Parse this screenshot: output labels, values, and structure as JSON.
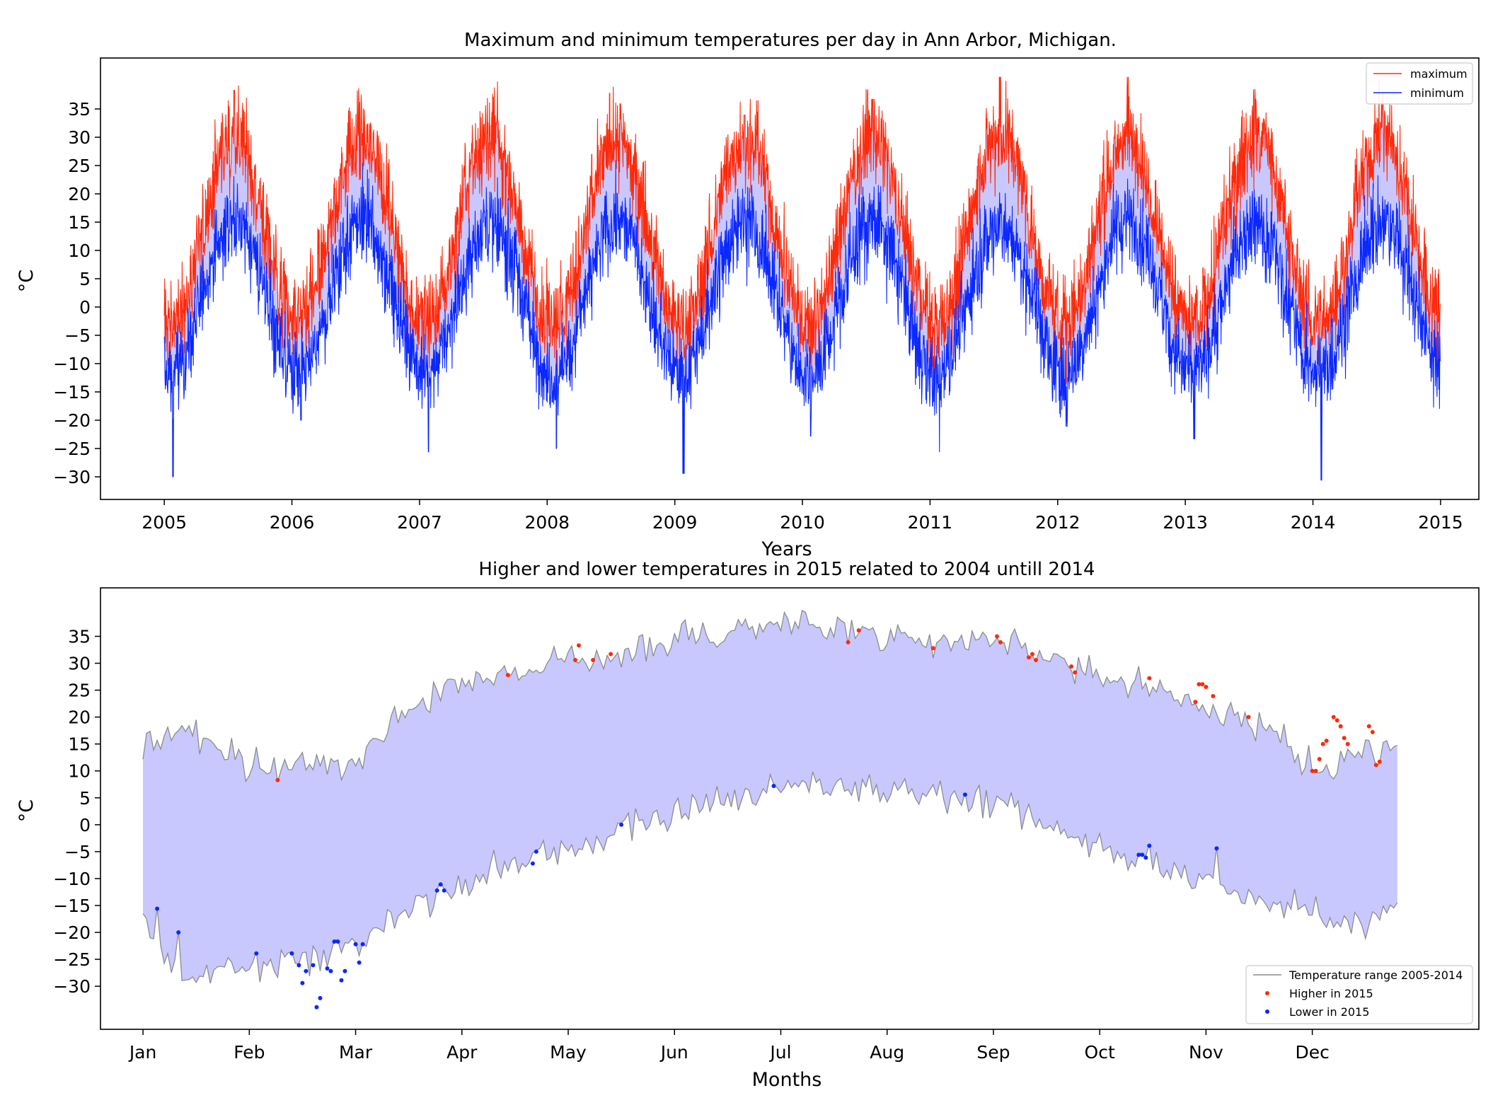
{
  "chart_data": [
    {
      "type": "line",
      "title": "Maximum and minimum temperatures per day in Ann Arbor, Michigan.",
      "xlabel": "Years",
      "ylabel": "°C",
      "xlim": [
        2004.5,
        2015.3
      ],
      "ylim": [
        -34,
        44
      ],
      "x_ticks": [
        "2005",
        "2006",
        "2007",
        "2008",
        "2009",
        "2010",
        "2011",
        "2012",
        "2013",
        "2014",
        "2015"
      ],
      "y_ticks": [
        -30,
        -25,
        -20,
        -15,
        -10,
        -5,
        0,
        5,
        10,
        15,
        20,
        25,
        30,
        35
      ],
      "legend_position": "top-right",
      "fill_between": {
        "color": "#c8c8ff"
      },
      "series": [
        {
          "name": "maximum",
          "color": "#ff2a0a",
          "x_range": [
            2005,
            2015
          ],
          "seasonal_mean": 13.5,
          "seasonal_amplitude": 16.5,
          "noise": 5,
          "yearly_peaks": [
            38.3,
            35.6,
            36.1,
            35.6,
            33.9,
            36.7,
            40.6,
            40.6,
            36.7,
            35.6
          ],
          "note": "daily values sampled 2005-2014 (approx. 3650 points)"
        },
        {
          "name": "minimum",
          "color": "#0a28ff",
          "x_range": [
            2005,
            2015
          ],
          "seasonal_mean": 2,
          "seasonal_amplitude": 13,
          "noise": 5,
          "yearly_lows": [
            -30,
            -20,
            -25.6,
            -25,
            -29.4,
            -22.8,
            -25.6,
            -21.1,
            -23.3,
            -30.6
          ],
          "note": "daily values sampled 2005-2014 (approx. 3650 points)"
        }
      ]
    },
    {
      "type": "scatter",
      "title": "Higher and lower temperatures in 2015 related to 2004 untill 2014",
      "xlabel": "Months",
      "ylabel": "°C",
      "xlim": [
        -12,
        377
      ],
      "ylim": [
        -38,
        44
      ],
      "x_ticks": [
        {
          "label": "Jan",
          "day": 0
        },
        {
          "label": "Feb",
          "day": 30
        },
        {
          "label": "Mar",
          "day": 60
        },
        {
          "label": "Apr",
          "day": 90
        },
        {
          "label": "May",
          "day": 120
        },
        {
          "label": "Jun",
          "day": 150
        },
        {
          "label": "Jul",
          "day": 180
        },
        {
          "label": "Aug",
          "day": 210
        },
        {
          "label": "Sep",
          "day": 240
        },
        {
          "label": "Oct",
          "day": 270
        },
        {
          "label": "Nov",
          "day": 300
        },
        {
          "label": "Dec",
          "day": 330
        }
      ],
      "y_ticks": [
        -30,
        -25,
        -20,
        -15,
        -10,
        -5,
        0,
        5,
        10,
        15,
        20,
        25,
        30,
        35
      ],
      "legend_position": "lower-right",
      "range_band": {
        "name": "Temperature range 2005-2014",
        "line_color": "#8c8c8c",
        "fill_color": "#c8c8ff",
        "upper_control": [
          [
            0,
            15
          ],
          [
            10,
            18
          ],
          [
            30,
            11
          ],
          [
            60,
            12
          ],
          [
            75,
            22
          ],
          [
            90,
            27
          ],
          [
            110,
            29
          ],
          [
            135,
            32
          ],
          [
            165,
            36
          ],
          [
            185,
            38
          ],
          [
            205,
            36
          ],
          [
            225,
            34
          ],
          [
            245,
            35
          ],
          [
            262,
            30
          ],
          [
            280,
            26
          ],
          [
            300,
            22
          ],
          [
            320,
            17
          ],
          [
            330,
            10
          ],
          [
            345,
            14
          ],
          [
            354,
            15
          ]
        ],
        "lower_control": [
          [
            0,
            -18
          ],
          [
            10,
            -28
          ],
          [
            30,
            -27
          ],
          [
            50,
            -25
          ],
          [
            60,
            -22
          ],
          [
            70,
            -17
          ],
          [
            85,
            -13
          ],
          [
            100,
            -8
          ],
          [
            120,
            -5
          ],
          [
            140,
            0
          ],
          [
            160,
            4
          ],
          [
            180,
            7
          ],
          [
            205,
            7
          ],
          [
            225,
            6
          ],
          [
            245,
            3
          ],
          [
            262,
            -2
          ],
          [
            280,
            -7
          ],
          [
            300,
            -10
          ],
          [
            315,
            -14
          ],
          [
            330,
            -16
          ],
          [
            345,
            -19
          ],
          [
            354,
            -15
          ]
        ]
      },
      "series": [
        {
          "name": "Higher in 2015",
          "color": "#ff2a0a",
          "points": [
            [
              38,
              8.3
            ],
            [
              103,
              27.8
            ],
            [
              122,
              30.6
            ],
            [
              123,
              33.3
            ],
            [
              127,
              30.6
            ],
            [
              132,
              31.7
            ],
            [
              199,
              33.9
            ],
            [
              202,
              36.1
            ],
            [
              223,
              32.8
            ],
            [
              241,
              35
            ],
            [
              242,
              33.9
            ],
            [
              250,
              31.1
            ],
            [
              251,
              31.7
            ],
            [
              252,
              30.6
            ],
            [
              262,
              29.4
            ],
            [
              263,
              28.3
            ],
            [
              284,
              27.2
            ],
            [
              297,
              22.8
            ],
            [
              298,
              26.1
            ],
            [
              299,
              26.1
            ],
            [
              300,
              25.6
            ],
            [
              302,
              23.9
            ],
            [
              312,
              20
            ],
            [
              330,
              10
            ],
            [
              331,
              10
            ],
            [
              332,
              12.2
            ],
            [
              333,
              15
            ],
            [
              334,
              15.6
            ],
            [
              336,
              20
            ],
            [
              337,
              19.4
            ],
            [
              338,
              18.3
            ],
            [
              339,
              16.1
            ],
            [
              340,
              15
            ],
            [
              346,
              18.3
            ],
            [
              347,
              17.2
            ],
            [
              348,
              11.1
            ],
            [
              349,
              11.7
            ]
          ]
        },
        {
          "name": "Lower in 2015",
          "color": "#0a28ff",
          "points": [
            [
              4,
              -15.6
            ],
            [
              10,
              -20
            ],
            [
              32,
              -23.9
            ],
            [
              42,
              -23.9
            ],
            [
              44,
              -26.1
            ],
            [
              45,
              -29.4
            ],
            [
              46,
              -27.2
            ],
            [
              48,
              -26.1
            ],
            [
              49,
              -33.9
            ],
            [
              50,
              -32.2
            ],
            [
              52,
              -26.7
            ],
            [
              53,
              -27.2
            ],
            [
              54,
              -21.7
            ],
            [
              55,
              -21.7
            ],
            [
              56,
              -28.9
            ],
            [
              57,
              -27.2
            ],
            [
              60,
              -22.2
            ],
            [
              61,
              -25.6
            ],
            [
              62,
              -22.2
            ],
            [
              83,
              -12.2
            ],
            [
              84,
              -11.1
            ],
            [
              85,
              -12.2
            ],
            [
              110,
              -7.2
            ],
            [
              111,
              -5
            ],
            [
              135,
              0
            ],
            [
              178,
              7.2
            ],
            [
              232,
              5.6
            ],
            [
              281,
              -5.6
            ],
            [
              282,
              -5.6
            ],
            [
              283,
              -6.1
            ],
            [
              284,
              -3.9
            ],
            [
              303,
              -4.4
            ]
          ]
        }
      ]
    }
  ]
}
